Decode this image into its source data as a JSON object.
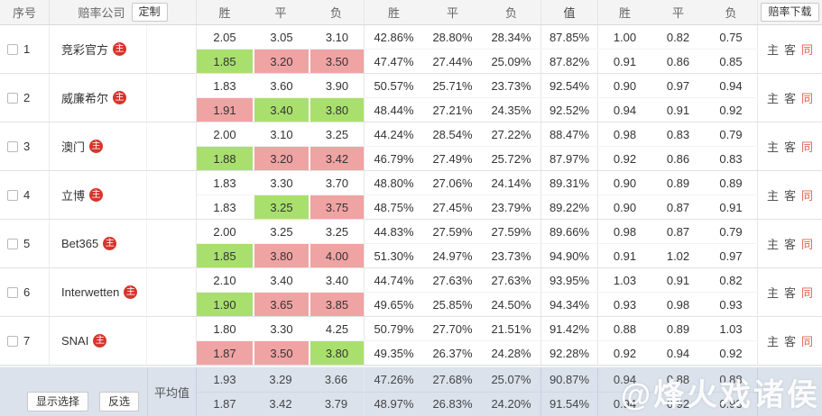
{
  "watermark": "@烽火戏诸侯",
  "colors": {
    "cell_green": "#a9e06d",
    "cell_red": "#f0a3a3",
    "text_green": "#2fa332",
    "text_red": "#e13b3b",
    "link_red": "#e2604e",
    "badge_red": "#d7342b",
    "footer_bg": "#dbe2ec"
  },
  "header": {
    "col_seq": "序号",
    "col_company": "赔率公司",
    "customize_btn": "定制",
    "odds_cols": [
      "胜",
      "平",
      "负"
    ],
    "prob_cols": [
      "胜",
      "平",
      "负"
    ],
    "col_value": "值",
    "kelly_cols": [
      "胜",
      "平",
      "负"
    ],
    "download_btn": "赔率下载"
  },
  "links": {
    "home": "主",
    "away": "客",
    "same": "同"
  },
  "rows": [
    {
      "index": "1",
      "company": "竞彩官方",
      "badge": "主",
      "lines": [
        {
          "odds": [
            {
              "v": "2.05",
              "bg": ""
            },
            {
              "v": "3.05",
              "bg": ""
            },
            {
              "v": "3.10",
              "bg": ""
            }
          ],
          "probs": [
            "42.86%",
            "28.80%",
            "28.34%"
          ],
          "value": "87.85%",
          "kelly": [
            {
              "v": "1.00",
              "c": ""
            },
            {
              "v": "0.82",
              "c": ""
            },
            {
              "v": "0.75",
              "c": ""
            }
          ]
        },
        {
          "odds": [
            {
              "v": "1.85",
              "bg": "green"
            },
            {
              "v": "3.20",
              "bg": "red"
            },
            {
              "v": "3.50",
              "bg": "red"
            }
          ],
          "probs": [
            "47.47%",
            "27.44%",
            "25.09%"
          ],
          "value": "87.82%",
          "kelly": [
            {
              "v": "0.91",
              "c": "green"
            },
            {
              "v": "0.86",
              "c": "red"
            },
            {
              "v": "0.85",
              "c": "red"
            }
          ]
        }
      ]
    },
    {
      "index": "2",
      "company": "威廉希尔",
      "badge": "主",
      "lines": [
        {
          "odds": [
            {
              "v": "1.83",
              "bg": ""
            },
            {
              "v": "3.60",
              "bg": ""
            },
            {
              "v": "3.90",
              "bg": ""
            }
          ],
          "probs": [
            "50.57%",
            "25.71%",
            "23.73%"
          ],
          "value": "92.54%",
          "kelly": [
            {
              "v": "0.90",
              "c": ""
            },
            {
              "v": "0.97",
              "c": ""
            },
            {
              "v": "0.94",
              "c": ""
            }
          ]
        },
        {
          "odds": [
            {
              "v": "1.91",
              "bg": "red"
            },
            {
              "v": "3.40",
              "bg": "green"
            },
            {
              "v": "3.80",
              "bg": "green"
            }
          ],
          "probs": [
            "48.44%",
            "27.21%",
            "24.35%"
          ],
          "value": "92.52%",
          "kelly": [
            {
              "v": "0.94",
              "c": "red"
            },
            {
              "v": "0.91",
              "c": "green"
            },
            {
              "v": "0.92",
              "c": "green"
            }
          ]
        }
      ]
    },
    {
      "index": "3",
      "company": "澳门",
      "badge": "主",
      "lines": [
        {
          "odds": [
            {
              "v": "2.00",
              "bg": ""
            },
            {
              "v": "3.10",
              "bg": ""
            },
            {
              "v": "3.25",
              "bg": ""
            }
          ],
          "probs": [
            "44.24%",
            "28.54%",
            "27.22%"
          ],
          "value": "88.47%",
          "kelly": [
            {
              "v": "0.98",
              "c": ""
            },
            {
              "v": "0.83",
              "c": ""
            },
            {
              "v": "0.79",
              "c": ""
            }
          ]
        },
        {
          "odds": [
            {
              "v": "1.88",
              "bg": "green"
            },
            {
              "v": "3.20",
              "bg": "red"
            },
            {
              "v": "3.42",
              "bg": "red"
            }
          ],
          "probs": [
            "46.79%",
            "27.49%",
            "25.72%"
          ],
          "value": "87.97%",
          "kelly": [
            {
              "v": "0.92",
              "c": "green"
            },
            {
              "v": "0.86",
              "c": "red"
            },
            {
              "v": "0.83",
              "c": "red"
            }
          ]
        }
      ]
    },
    {
      "index": "4",
      "company": "立博",
      "badge": "主",
      "lines": [
        {
          "odds": [
            {
              "v": "1.83",
              "bg": ""
            },
            {
              "v": "3.30",
              "bg": ""
            },
            {
              "v": "3.70",
              "bg": ""
            }
          ],
          "probs": [
            "48.80%",
            "27.06%",
            "24.14%"
          ],
          "value": "89.31%",
          "kelly": [
            {
              "v": "0.90",
              "c": ""
            },
            {
              "v": "0.89",
              "c": ""
            },
            {
              "v": "0.89",
              "c": ""
            }
          ]
        },
        {
          "odds": [
            {
              "v": "1.83",
              "bg": ""
            },
            {
              "v": "3.25",
              "bg": "green"
            },
            {
              "v": "3.75",
              "bg": "red"
            }
          ],
          "probs": [
            "48.75%",
            "27.45%",
            "23.79%"
          ],
          "value": "89.22%",
          "kelly": [
            {
              "v": "0.90",
              "c": ""
            },
            {
              "v": "0.87",
              "c": "green"
            },
            {
              "v": "0.91",
              "c": "red"
            }
          ]
        }
      ]
    },
    {
      "index": "5",
      "company": "Bet365",
      "badge": "主",
      "lines": [
        {
          "odds": [
            {
              "v": "2.00",
              "bg": ""
            },
            {
              "v": "3.25",
              "bg": ""
            },
            {
              "v": "3.25",
              "bg": ""
            }
          ],
          "probs": [
            "44.83%",
            "27.59%",
            "27.59%"
          ],
          "value": "89.66%",
          "kelly": [
            {
              "v": "0.98",
              "c": ""
            },
            {
              "v": "0.87",
              "c": ""
            },
            {
              "v": "0.79",
              "c": ""
            }
          ]
        },
        {
          "odds": [
            {
              "v": "1.85",
              "bg": "green"
            },
            {
              "v": "3.80",
              "bg": "red"
            },
            {
              "v": "4.00",
              "bg": "red"
            }
          ],
          "probs": [
            "51.30%",
            "24.97%",
            "23.73%"
          ],
          "value": "94.90%",
          "kelly": [
            {
              "v": "0.91",
              "c": "green"
            },
            {
              "v": "1.02",
              "c": "red"
            },
            {
              "v": "0.97",
              "c": "red"
            }
          ]
        }
      ]
    },
    {
      "index": "6",
      "company": "Interwetten",
      "badge": "主",
      "lines": [
        {
          "odds": [
            {
              "v": "2.10",
              "bg": ""
            },
            {
              "v": "3.40",
              "bg": ""
            },
            {
              "v": "3.40",
              "bg": ""
            }
          ],
          "probs": [
            "44.74%",
            "27.63%",
            "27.63%"
          ],
          "value": "93.95%",
          "kelly": [
            {
              "v": "1.03",
              "c": ""
            },
            {
              "v": "0.91",
              "c": ""
            },
            {
              "v": "0.82",
              "c": ""
            }
          ]
        },
        {
          "odds": [
            {
              "v": "1.90",
              "bg": "green"
            },
            {
              "v": "3.65",
              "bg": "red"
            },
            {
              "v": "3.85",
              "bg": "red"
            }
          ],
          "probs": [
            "49.65%",
            "25.85%",
            "24.50%"
          ],
          "value": "94.34%",
          "kelly": [
            {
              "v": "0.93",
              "c": "green"
            },
            {
              "v": "0.98",
              "c": "red"
            },
            {
              "v": "0.93",
              "c": "red"
            }
          ]
        }
      ]
    },
    {
      "index": "7",
      "company": "SNAI",
      "badge": "主",
      "lines": [
        {
          "odds": [
            {
              "v": "1.80",
              "bg": ""
            },
            {
              "v": "3.30",
              "bg": ""
            },
            {
              "v": "4.25",
              "bg": ""
            }
          ],
          "probs": [
            "50.79%",
            "27.70%",
            "21.51%"
          ],
          "value": "91.42%",
          "kelly": [
            {
              "v": "0.88",
              "c": ""
            },
            {
              "v": "0.89",
              "c": ""
            },
            {
              "v": "1.03",
              "c": ""
            }
          ]
        },
        {
          "odds": [
            {
              "v": "1.87",
              "bg": "red"
            },
            {
              "v": "3.50",
              "bg": "red"
            },
            {
              "v": "3.80",
              "bg": "green"
            }
          ],
          "probs": [
            "49.35%",
            "26.37%",
            "24.28%"
          ],
          "value": "92.28%",
          "kelly": [
            {
              "v": "0.92",
              "c": "red"
            },
            {
              "v": "0.94",
              "c": "red"
            },
            {
              "v": "0.92",
              "c": "green"
            }
          ]
        }
      ]
    }
  ],
  "footer": {
    "show_selection_btn": "显示选择",
    "invert_btn": "反选",
    "average_label": "平均值",
    "rows": [
      {
        "odds": [
          "1.93",
          "3.29",
          "3.66"
        ],
        "probs": [
          "47.26%",
          "27.68%",
          "25.07%"
        ],
        "value": "90.87%",
        "kelly": [
          "0.94",
          "0.88",
          "0.88"
        ]
      },
      {
        "odds": [
          "1.87",
          "3.42",
          "3.79"
        ],
        "probs": [
          "48.97%",
          "26.83%",
          "24.20%"
        ],
        "value": "91.54%",
        "kelly": [
          "0.94",
          "0.92",
          "0.93"
        ]
      }
    ]
  }
}
